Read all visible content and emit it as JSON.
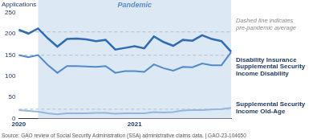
{
  "chart_data": {
    "type": "line",
    "ylabel": "Applications",
    "categories": [
      "2020",
      null,
      null,
      null,
      null,
      null,
      null,
      null,
      null,
      null,
      null,
      null,
      "2021",
      null,
      null,
      null,
      null,
      null,
      null,
      null,
      null,
      null,
      null
    ],
    "series": [
      {
        "name": "Disability Insurance",
        "color": "#2f6cb3",
        "pre_pandemic_average": 205,
        "values": [
          210,
          201,
          213,
          190,
          170,
          188,
          189,
          187,
          183,
          186,
          163,
          167,
          171,
          166,
          194,
          181,
          172,
          186,
          184,
          197,
          188,
          183,
          158
        ]
      },
      {
        "name": "Supplemental Security Income Disability",
        "color": "#5089c8",
        "pre_pandemic_average": 150,
        "values": [
          150,
          145,
          150,
          127,
          108,
          124,
          124,
          123,
          122,
          124,
          108,
          112,
          112,
          110,
          128,
          119,
          113,
          122,
          121,
          130,
          126,
          126,
          157
        ]
      },
      {
        "name": "Supplemental Security Income Old-Age",
        "color": "#93b6e0",
        "pre_pandemic_average": 22,
        "values": [
          20,
          18,
          16,
          12,
          10,
          12,
          12,
          12,
          13,
          13,
          11,
          12,
          12,
          12,
          15,
          14,
          15,
          19,
          20,
          20,
          21,
          22,
          25
        ]
      }
    ],
    "shaded_region": {
      "label": "Pandemic",
      "from": 2,
      "to": 22
    },
    "note": "Dashed line indicates pre-pandemic average",
    "source": "Source: GAO review of Social Security Administration (SSA) administrative claims data. | GAO-23-104650",
    "ylim": [
      0,
      250
    ],
    "yticks": [
      0,
      50,
      100,
      150,
      200,
      250
    ],
    "grid": false
  }
}
